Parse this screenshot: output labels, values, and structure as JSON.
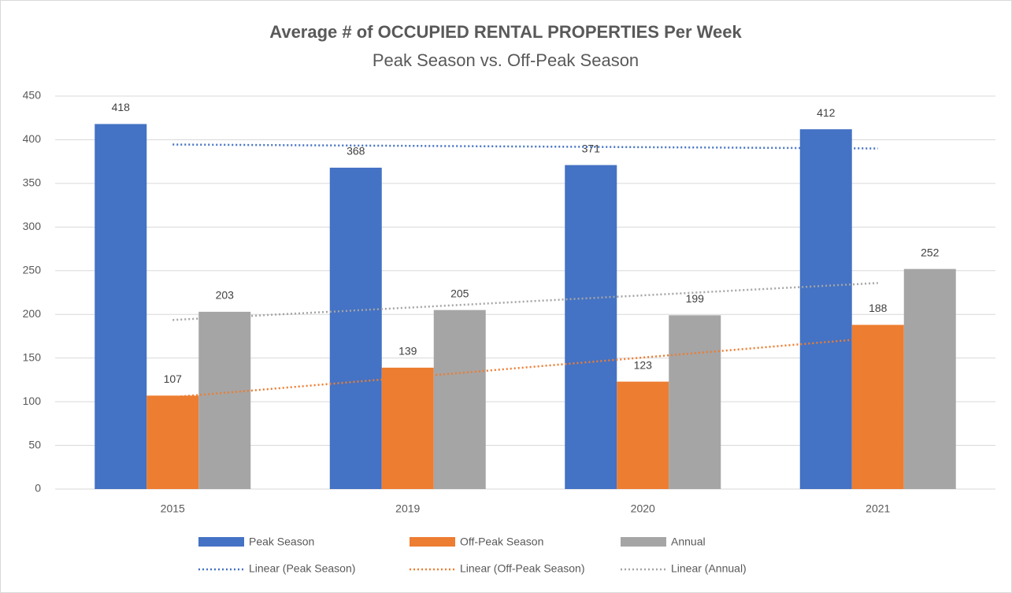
{
  "chart_data": {
    "type": "bar",
    "title": "Average # of OCCUPIED RENTAL PROPERTIES Per Week",
    "subtitle": "Peak Season vs. Off-Peak Season",
    "categories": [
      "2015",
      "2019",
      "2020",
      "2021"
    ],
    "series": [
      {
        "name": "Peak Season",
        "color": "#4472c4",
        "values": [
          418,
          368,
          371,
          412
        ],
        "trendline": "Linear (Peak Season)"
      },
      {
        "name": "Off-Peak Season",
        "color": "#ed7d31",
        "values": [
          107,
          139,
          123,
          188
        ],
        "trendline": "Linear (Off-Peak Season)"
      },
      {
        "name": "Annual",
        "color": "#a5a5a5",
        "values": [
          203,
          205,
          199,
          252
        ],
        "trendline": "Linear (Annual)"
      }
    ],
    "ylim": [
      0,
      450
    ],
    "yticks": [
      0,
      50,
      100,
      150,
      200,
      250,
      300,
      350,
      400,
      450
    ],
    "grid": true,
    "legend": "bottom"
  }
}
